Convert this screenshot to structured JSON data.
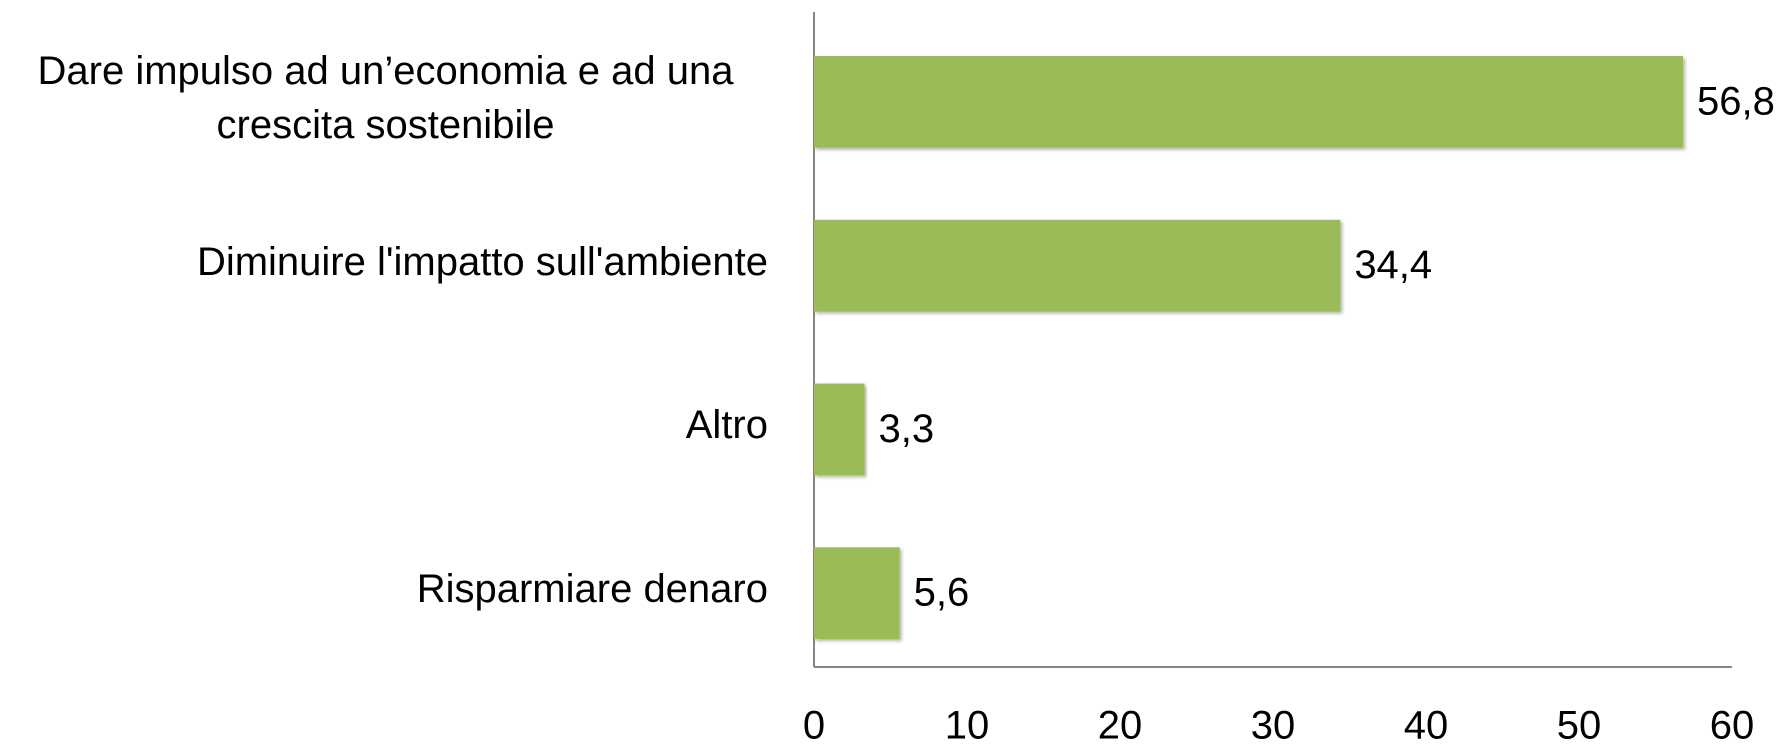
{
  "chart_data": {
    "type": "bar",
    "orientation": "horizontal",
    "categories": [
      "Dare impulso ad un’economia e ad una crescita sostenibile",
      "Diminuire l'impatto sull'ambiente",
      "Altro",
      "Risparmiare denaro"
    ],
    "values": [
      56.8,
      34.4,
      3.3,
      5.6
    ],
    "value_labels": [
      "56,8",
      "34,4",
      "3,3",
      "5,6"
    ],
    "color": "#9bbb59",
    "xlim": [
      0,
      60
    ],
    "xticks": [
      0,
      10,
      20,
      30,
      40,
      50,
      60
    ],
    "grid": false
  }
}
